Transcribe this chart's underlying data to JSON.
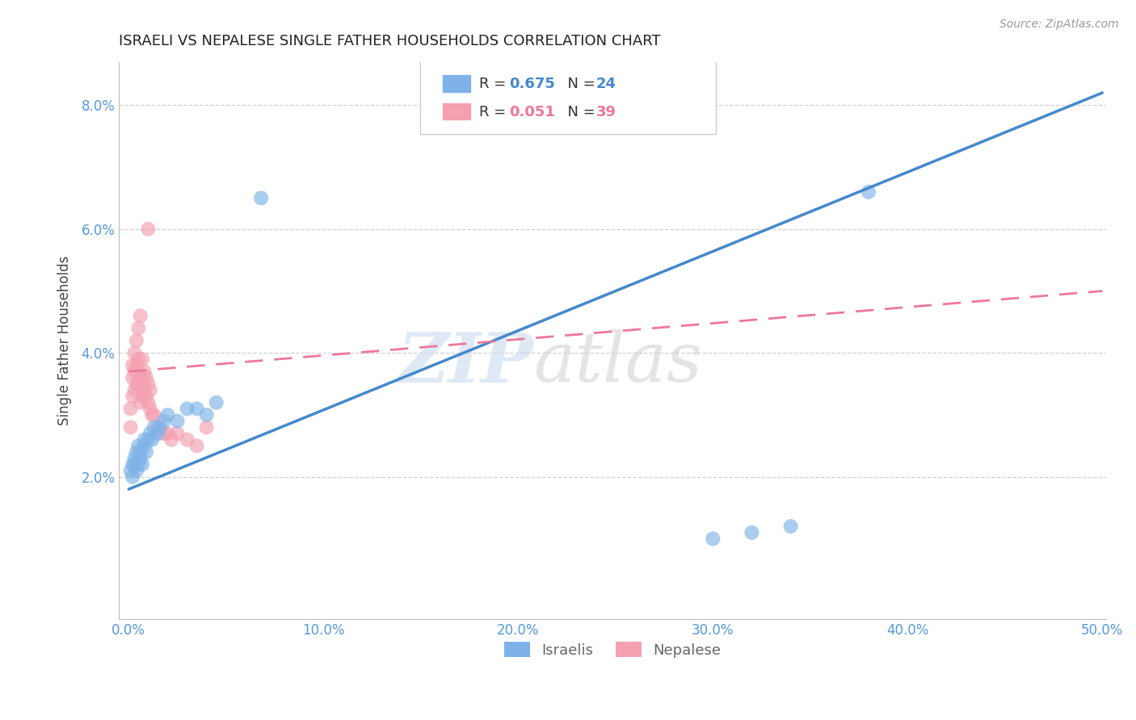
{
  "title": "ISRAELI VS NEPALESE SINGLE FATHER HOUSEHOLDS CORRELATION CHART",
  "source": "Source: ZipAtlas.com",
  "ylabel": "Single Father Households",
  "xlabel_ticks": [
    "0.0%",
    "10.0%",
    "20.0%",
    "30.0%",
    "40.0%",
    "50.0%"
  ],
  "ylabel_ticks": [
    "2.0%",
    "4.0%",
    "6.0%",
    "8.0%"
  ],
  "xlim": [
    -0.005,
    0.502
  ],
  "ylim": [
    -0.003,
    0.087
  ],
  "yticks": [
    0.02,
    0.04,
    0.06,
    0.08
  ],
  "xticks": [
    0.0,
    0.1,
    0.2,
    0.3,
    0.4,
    0.5
  ],
  "watermark_zip": "ZIP",
  "watermark_atlas": "atlas",
  "israeli_color": "#7fb3e8",
  "nepalese_color": "#f4a0b0",
  "israeli_line_color": "#4488cc",
  "nepalese_line_color": "#ee7799",
  "grid_color": "#d0d0d0",
  "axis_tick_color": "#5599dd",
  "title_color": "#222222",
  "source_color": "#999999",
  "israeli_line_x0": 0.0,
  "israeli_line_y0": 0.018,
  "israeli_line_x1": 0.5,
  "israeli_line_y1": 0.082,
  "nepalese_line_x0": 0.0,
  "nepalese_line_y0": 0.037,
  "nepalese_line_x1": 0.5,
  "nepalese_line_y1": 0.05,
  "israeli_scatter_x": [
    0.001,
    0.002,
    0.002,
    0.003,
    0.003,
    0.004,
    0.004,
    0.005,
    0.005,
    0.006,
    0.006,
    0.007,
    0.008,
    0.008,
    0.009,
    0.01,
    0.011,
    0.012,
    0.013,
    0.015,
    0.016,
    0.018,
    0.02,
    0.025,
    0.03,
    0.035,
    0.04,
    0.045,
    0.068,
    0.3,
    0.32,
    0.34,
    0.38
  ],
  "israeli_scatter_y": [
    0.021,
    0.02,
    0.022,
    0.022,
    0.023,
    0.021,
    0.024,
    0.022,
    0.025,
    0.023,
    0.024,
    0.022,
    0.025,
    0.026,
    0.024,
    0.026,
    0.027,
    0.026,
    0.028,
    0.027,
    0.028,
    0.029,
    0.03,
    0.029,
    0.031,
    0.031,
    0.03,
    0.032,
    0.065,
    0.01,
    0.011,
    0.012,
    0.066
  ],
  "nepalese_scatter_x": [
    0.001,
    0.001,
    0.002,
    0.002,
    0.002,
    0.003,
    0.003,
    0.003,
    0.004,
    0.004,
    0.004,
    0.005,
    0.005,
    0.005,
    0.006,
    0.006,
    0.006,
    0.007,
    0.007,
    0.007,
    0.008,
    0.008,
    0.009,
    0.009,
    0.01,
    0.01,
    0.011,
    0.011,
    0.012,
    0.013,
    0.015,
    0.018,
    0.02,
    0.022,
    0.025,
    0.03,
    0.035,
    0.04,
    0.01
  ],
  "nepalese_scatter_y": [
    0.028,
    0.031,
    0.033,
    0.036,
    0.038,
    0.034,
    0.037,
    0.04,
    0.035,
    0.038,
    0.042,
    0.035,
    0.039,
    0.044,
    0.032,
    0.036,
    0.046,
    0.033,
    0.036,
    0.039,
    0.034,
    0.037,
    0.033,
    0.036,
    0.032,
    0.035,
    0.031,
    0.034,
    0.03,
    0.03,
    0.028,
    0.027,
    0.027,
    0.026,
    0.027,
    0.026,
    0.025,
    0.028,
    0.06
  ]
}
